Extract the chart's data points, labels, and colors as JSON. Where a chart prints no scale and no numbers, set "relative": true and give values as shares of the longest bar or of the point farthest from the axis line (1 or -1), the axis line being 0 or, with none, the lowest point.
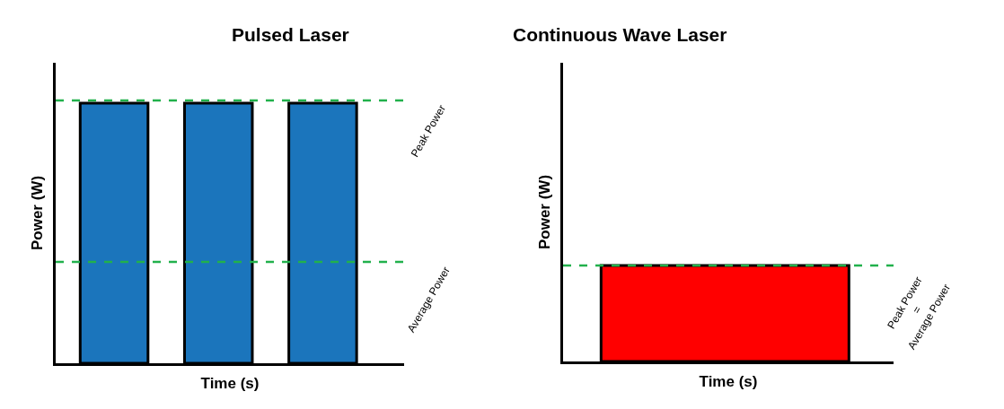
{
  "chart_data": [
    {
      "type": "bar",
      "title": "Pulsed Laser",
      "xlabel": "Time (s)",
      "ylabel": "Power (W)",
      "relative": true,
      "categories": [
        null,
        null,
        null
      ],
      "values": [
        1,
        1,
        1
      ],
      "color": "#1b75bc",
      "ref_lines": [
        {
          "axis": "y",
          "value": 1.01,
          "label": "Peak Power",
          "color": "#22b14c",
          "line_style": "dashed"
        },
        {
          "axis": "y",
          "value": 0.39,
          "label": "Average Power",
          "color": "#22b14c",
          "line_style": "dashed"
        }
      ]
    },
    {
      "type": "bar",
      "title": "Continuous Wave Laser",
      "xlabel": "Time (s)",
      "ylabel": "Power (W)",
      "relative": true,
      "categories": [
        null
      ],
      "values": [
        1
      ],
      "color": "#ff0000",
      "ref_lines": [
        {
          "axis": "y",
          "value": 1,
          "label": "Peak Power\n=\nAverage Power",
          "color": "#22b14c",
          "line_style": "dashed"
        }
      ]
    }
  ]
}
